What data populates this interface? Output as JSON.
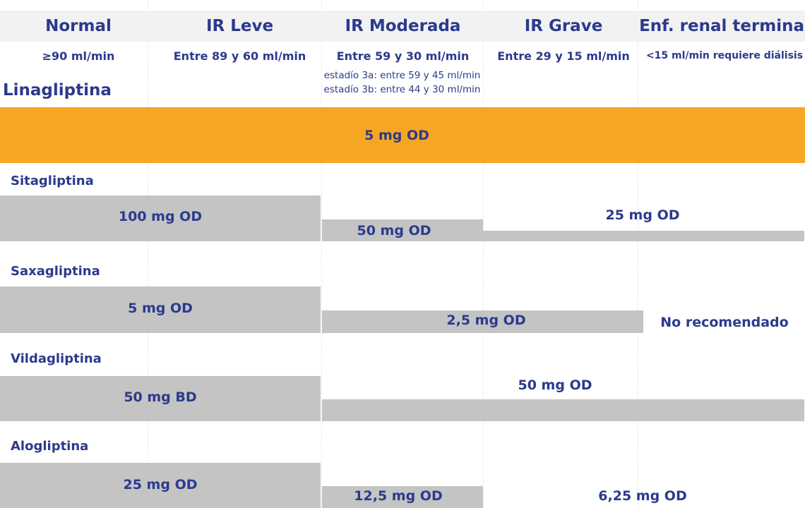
{
  "colors": {
    "text": "#2b3a8c",
    "header_band": "#f2f2f2",
    "orange": "#f5a623",
    "gray_bar": "#c4c4c4"
  },
  "columns": [
    {
      "title": "Normal",
      "range": "≥90 ml/min"
    },
    {
      "title": "IR Leve",
      "range": "Entre 89 y 60 ml/min"
    },
    {
      "title": "IR Moderada",
      "range": "Entre 59 y 30 ml/min"
    },
    {
      "title": "IR Grave",
      "range": "Entre 29 y 15 ml/min"
    },
    {
      "title": "Enf. renal terminal",
      "range": "<15 ml/min requiere diálisis"
    }
  ],
  "moderate_substages": [
    "estadío 3a: entre 59 y 45 ml/min",
    "estadío 3b: entre 44 y 30 ml/min"
  ],
  "drugs": {
    "linagliptina": {
      "name": "Linagliptina",
      "doses": [
        "5 mg OD"
      ]
    },
    "sitagliptina": {
      "name": "Sitagliptina",
      "doses": [
        "100 mg OD",
        "50 mg OD",
        "25 mg OD"
      ]
    },
    "saxagliptina": {
      "name": "Saxagliptina",
      "doses": [
        "5 mg OD",
        "2,5 mg OD",
        "No recomendado"
      ]
    },
    "vildagliptina": {
      "name": "Vildagliptina",
      "doses": [
        "50 mg BD",
        "50 mg OD"
      ]
    },
    "alogliptina": {
      "name": "Alogliptina",
      "doses": [
        "25 mg OD",
        "12,5 mg OD",
        "6,25 mg OD"
      ]
    }
  }
}
